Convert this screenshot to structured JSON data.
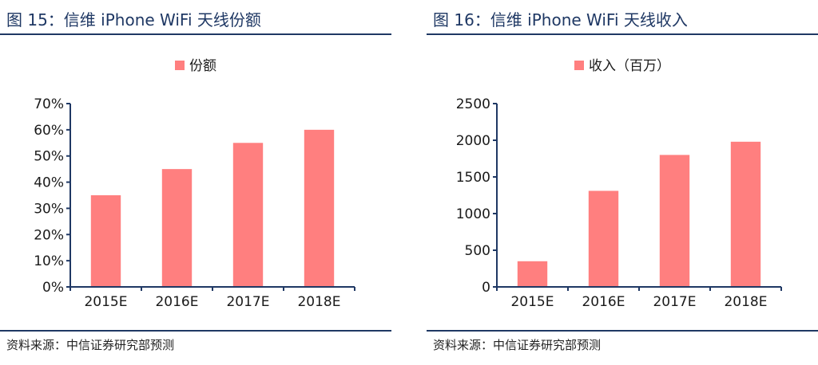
{
  "colors": {
    "bar": "#ff7f7f",
    "axis": "#1f3864",
    "title": "#1f3864"
  },
  "charts": [
    {
      "title": "图 15：信维 iPhone WiFi 天线份额",
      "source": "资料来源：中信证券研究部预测"
    },
    {
      "title": "图 16：信维 iPhone WiFi 天线收入",
      "source": "资料来源：中信证券研究部预测"
    }
  ],
  "chart_data": [
    {
      "type": "bar",
      "categories": [
        "2015E",
        "2016E",
        "2017E",
        "2018E"
      ],
      "series": [
        {
          "name": "份额",
          "values": [
            35,
            45,
            55,
            60
          ]
        }
      ],
      "ylim": [
        0,
        70
      ],
      "yticks": [
        0,
        10,
        20,
        30,
        40,
        50,
        60,
        70
      ],
      "ytick_labels": [
        "0%",
        "10%",
        "20%",
        "30%",
        "40%",
        "50%",
        "60%",
        "70%"
      ],
      "legend": "top-center",
      "grid": false
    },
    {
      "type": "bar",
      "categories": [
        "2015E",
        "2016E",
        "2017E",
        "2018E"
      ],
      "series": [
        {
          "name": "收入（百万）",
          "values": [
            350,
            1310,
            1800,
            1980
          ]
        }
      ],
      "ylim": [
        0,
        2500
      ],
      "yticks": [
        0,
        500,
        1000,
        1500,
        2000,
        2500
      ],
      "ytick_labels": [
        "0",
        "500",
        "1000",
        "1500",
        "2000",
        "2500"
      ],
      "legend": "top-center",
      "grid": false
    }
  ]
}
